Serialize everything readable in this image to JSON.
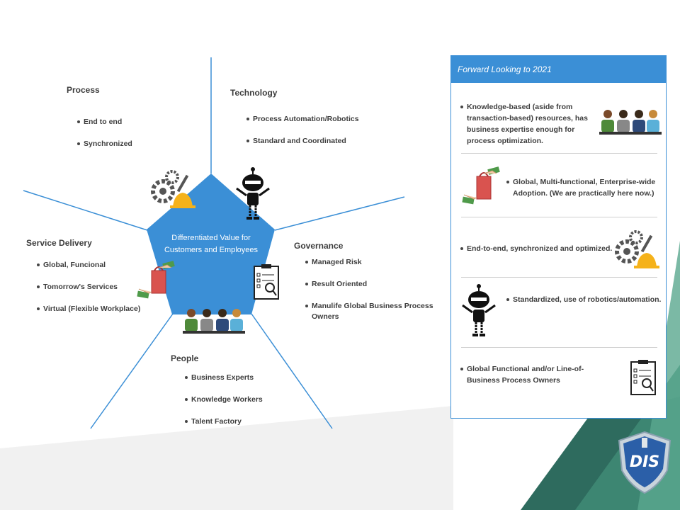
{
  "colors": {
    "accent_blue": "#3b8fd6",
    "teal_dark": "#2e6b5e",
    "teal_mid": "#3f8a74",
    "light_gray": "#f1f1f1"
  },
  "diagram": {
    "center_label": "Differentiated Value for Customers and Employees",
    "sections": {
      "process": {
        "title": "Process",
        "items": [
          "End to end",
          "Synchronized"
        ]
      },
      "technology": {
        "title": "Technology",
        "items": [
          "Process Automation/Robotics",
          "Standard and Coordinated"
        ]
      },
      "service_delivery": {
        "title": "Service Delivery",
        "items": [
          "Global, Funcional",
          "Tomorrow's Services",
          "Virtual (Flexible Workplace)"
        ]
      },
      "governance": {
        "title": "Governance",
        "items": [
          "Managed Risk",
          "Result Oriented",
          "Manulife Global Business Process Owners"
        ]
      },
      "people": {
        "title": "People",
        "items": [
          "Business Experts",
          "Knowledge Workers",
          "Talent Factory"
        ]
      }
    },
    "icons": [
      "gears-hardhat-icon",
      "robot-icon",
      "money-handshake-icon",
      "clipboard-icon",
      "team-people-icon"
    ]
  },
  "panel": {
    "title": "Forward Looking to 2021",
    "items": [
      {
        "text": "Knowledge-based (aside from transaction-based) resources, has business expertise enough for process optimization.",
        "icon": "team-people-icon"
      },
      {
        "text": "Global, Multi-functional, Enterprise-wide Adoption. (We are practically here now.)",
        "icon": "money-handshake-icon"
      },
      {
        "text": "End-to-end, synchronized and optimized.",
        "icon": "gears-hardhat-icon"
      },
      {
        "text": "Standardized, use of robotics/automation.",
        "icon": "robot-icon"
      },
      {
        "text": "Global Functional and/or Line-of-Business Process Owners",
        "icon": "clipboard-icon"
      }
    ]
  },
  "logo": {
    "text": "DIS",
    "icon": "shield-logo-icon"
  }
}
